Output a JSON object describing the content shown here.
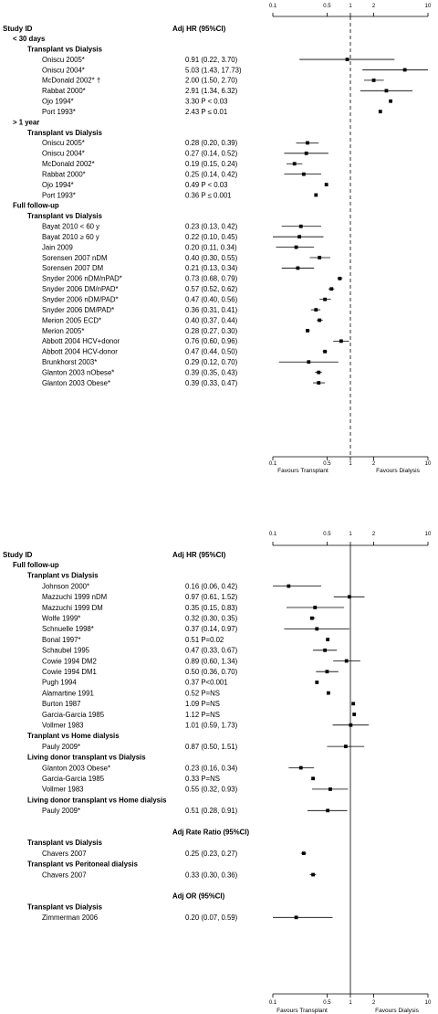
{
  "chart_data": [
    {
      "type": "forest",
      "scale": "log",
      "xlim": [
        0.1,
        10
      ],
      "ticks": [
        "0.1",
        "0.5",
        "1",
        "2",
        "10"
      ],
      "tick_values": [
        0.1,
        0.5,
        1,
        2,
        10
      ],
      "reference_line": 1,
      "reference_style": "dashed",
      "headers": {
        "study": "Study ID",
        "effect": "Adj HR (95%CI)"
      },
      "xlabel_left": "Favours Transplant",
      "xlabel_right": "Favours Dialysis",
      "rows": [
        {
          "kind": "group",
          "text": "< 30 days"
        },
        {
          "kind": "subgroup",
          "text": "Transplant vs Dialysis"
        },
        {
          "kind": "study",
          "text": "Oniscu 2005*",
          "est_label": "0.91 (0.22, 3.70)",
          "est": 0.91,
          "lo": 0.22,
          "hi": 3.7
        },
        {
          "kind": "study",
          "text": "Oniscu 2004*",
          "est_label": "5.03 (1.43, 17.73)",
          "est": 5.03,
          "lo": 1.43,
          "hi": 17.73
        },
        {
          "kind": "study",
          "text": "McDonald 2002* †",
          "est_label": "2.00 (1.50, 2.70)",
          "est": 2.0,
          "lo": 1.5,
          "hi": 2.7
        },
        {
          "kind": "study",
          "text": "Rabbat 2000*",
          "est_label": "2.91 (1.34, 6.32)",
          "est": 2.91,
          "lo": 1.34,
          "hi": 6.32
        },
        {
          "kind": "study",
          "text": "Ojo 1994*",
          "est_label": "3.30 P < 0.03",
          "est": 3.3
        },
        {
          "kind": "study",
          "text": "Port 1993*",
          "est_label": "2.43 P ≤ 0.01",
          "est": 2.43
        },
        {
          "kind": "group",
          "text": "> 1 year"
        },
        {
          "kind": "subgroup",
          "text": "Transplant vs Dialysis"
        },
        {
          "kind": "study",
          "text": "Oniscu 2005*",
          "est_label": "0.28 (0.20, 0.39)",
          "est": 0.28,
          "lo": 0.2,
          "hi": 0.39
        },
        {
          "kind": "study",
          "text": "Oniscu 2004*",
          "est_label": "0.27 (0.14, 0.52)",
          "est": 0.27,
          "lo": 0.14,
          "hi": 0.52
        },
        {
          "kind": "study",
          "text": "McDonald 2002*",
          "est_label": "0.19 (0.15, 0.24)",
          "est": 0.19,
          "lo": 0.15,
          "hi": 0.24
        },
        {
          "kind": "study",
          "text": "Rabbat 2000*",
          "est_label": "0.25 (0.14, 0.42)",
          "est": 0.25,
          "lo": 0.14,
          "hi": 0.42
        },
        {
          "kind": "study",
          "text": "Ojo 1994*",
          "est_label": "0.49 P < 0.03",
          "est": 0.49
        },
        {
          "kind": "study",
          "text": "Port 1993*",
          "est_label": "0.36 P ≤ 0.001",
          "est": 0.36
        },
        {
          "kind": "group",
          "text": "Full follow-up"
        },
        {
          "kind": "subgroup",
          "text": "Transplant vs Dialysis"
        },
        {
          "kind": "study",
          "text": "Bayat 2010 < 60 y",
          "est_label": "0.23 (0.13, 0.42)",
          "est": 0.23,
          "lo": 0.13,
          "hi": 0.42
        },
        {
          "kind": "study",
          "text": "Bayat 2010 ≥ 60 y",
          "est_label": "0.22 (0.10, 0.45)",
          "est": 0.22,
          "lo": 0.1,
          "hi": 0.45
        },
        {
          "kind": "study",
          "text": "Jain 2009",
          "est_label": "0.20 (0.11, 0.34)",
          "est": 0.2,
          "lo": 0.11,
          "hi": 0.34
        },
        {
          "kind": "study",
          "text": "Sorensen 2007 nDM",
          "est_label": "0.40 (0.30, 0.55)",
          "est": 0.4,
          "lo": 0.3,
          "hi": 0.55
        },
        {
          "kind": "study",
          "text": "Sorensen 2007 DM",
          "est_label": "0.21 (0.13, 0.34)",
          "est": 0.21,
          "lo": 0.13,
          "hi": 0.34
        },
        {
          "kind": "study",
          "text": "Snyder 2006 nDM/nPAD*",
          "est_label": "0.73 (0.68, 0.79)",
          "est": 0.73,
          "lo": 0.68,
          "hi": 0.79
        },
        {
          "kind": "study",
          "text": "Snyder 2006 DM/nPAD*",
          "est_label": "0.57 (0.52, 0.62)",
          "est": 0.57,
          "lo": 0.52,
          "hi": 0.62
        },
        {
          "kind": "study",
          "text": "Snyder 2006 nDM/PAD*",
          "est_label": "0.47 (0.40, 0.56)",
          "est": 0.47,
          "lo": 0.4,
          "hi": 0.56
        },
        {
          "kind": "study",
          "text": "Snyder 2006 DM/PAD*",
          "est_label": "0.36 (0.31, 0.41)",
          "est": 0.36,
          "lo": 0.31,
          "hi": 0.41
        },
        {
          "kind": "study",
          "text": "Merion 2005 ECD*",
          "est_label": "0.40 (0.37, 0.44)",
          "est": 0.4,
          "lo": 0.37,
          "hi": 0.44
        },
        {
          "kind": "study",
          "text": "Merion 2005*",
          "est_label": "0.28 (0.27, 0.30)",
          "est": 0.28,
          "lo": 0.27,
          "hi": 0.3
        },
        {
          "kind": "study",
          "text": "Abbott 2004 HCV+donor",
          "est_label": "0.76 (0.60, 0.96)",
          "est": 0.76,
          "lo": 0.6,
          "hi": 0.96
        },
        {
          "kind": "study",
          "text": "Abbott 2004 HCV-donor",
          "est_label": "0.47 (0.44, 0.50)",
          "est": 0.47,
          "lo": 0.44,
          "hi": 0.5
        },
        {
          "kind": "study",
          "text": "Brunkhorst 2003*",
          "est_label": "0.29 (0.12, 0.70)",
          "est": 0.29,
          "lo": 0.12,
          "hi": 0.7
        },
        {
          "kind": "study",
          "text": "Glanton 2003 nObese*",
          "est_label": "0.39 (0.35, 0.43)",
          "est": 0.39,
          "lo": 0.35,
          "hi": 0.43
        },
        {
          "kind": "study",
          "text": "Glanton 2003 Obese*",
          "est_label": "0.39 (0.33, 0.47)",
          "est": 0.39,
          "lo": 0.33,
          "hi": 0.47
        }
      ]
    },
    {
      "type": "forest",
      "scale": "log",
      "xlim": [
        0.1,
        10
      ],
      "ticks": [
        "0.1",
        "0.5",
        "1",
        "2",
        "10"
      ],
      "tick_values": [
        0.1,
        0.5,
        1,
        2,
        10
      ],
      "reference_line": 1,
      "reference_style": "solid",
      "headers": {
        "study": "Study ID",
        "effect": "Adj HR (95%CI)"
      },
      "xlabel_left": "Favours Transplant",
      "xlabel_right": "Favours Dialysis",
      "rows": [
        {
          "kind": "group",
          "text": "Full follow-up"
        },
        {
          "kind": "subgroup",
          "text": "Tranplant vs Dialysis"
        },
        {
          "kind": "study",
          "text": "Johnson 2000*",
          "est_label": "0.16 (0.06, 0.42)",
          "est": 0.16,
          "lo": 0.06,
          "hi": 0.42
        },
        {
          "kind": "study",
          "text": "Mazzuchi 1999 nDM",
          "est_label": "0.97 (0.61, 1.52)",
          "est": 0.97,
          "lo": 0.61,
          "hi": 1.52
        },
        {
          "kind": "study",
          "text": "Mazzuchi 1999 DM",
          "est_label": "0.35 (0.15, 0.83)",
          "est": 0.35,
          "lo": 0.15,
          "hi": 0.83
        },
        {
          "kind": "study",
          "text": "Wolfe 1999*",
          "est_label": "0.32 (0.30, 0.35)",
          "est": 0.32,
          "lo": 0.3,
          "hi": 0.35
        },
        {
          "kind": "study",
          "text": "Schnuelle 1998*",
          "est_label": "0.37 (0.14, 0.97)",
          "est": 0.37,
          "lo": 0.14,
          "hi": 0.97
        },
        {
          "kind": "study",
          "text": "Bonal 1997*",
          "est_label": "0.51 P=0.02",
          "est": 0.51
        },
        {
          "kind": "study",
          "text": "Schaubel 1995",
          "est_label": "0.47 (0.33, 0.67)",
          "est": 0.47,
          "lo": 0.33,
          "hi": 0.67
        },
        {
          "kind": "study",
          "text": "Cowie 1994 DM2",
          "est_label": "0.89 (0.60, 1.34)",
          "est": 0.89,
          "lo": 0.6,
          "hi": 1.34
        },
        {
          "kind": "study",
          "text": "Cowie 1994 DM1",
          "est_label": "0.50 (0.36, 0.70)",
          "est": 0.5,
          "lo": 0.36,
          "hi": 0.7
        },
        {
          "kind": "study",
          "text": "Pugh 1994",
          "est_label": "0.37 P<0.001",
          "est": 0.37
        },
        {
          "kind": "study",
          "text": "Alamartine 1991",
          "est_label": "0.52 P=NS",
          "est": 0.52
        },
        {
          "kind": "study",
          "text": "Burton 1987",
          "est_label": "1.09 P=NS",
          "est": 1.09
        },
        {
          "kind": "study",
          "text": "Garcia-Garcia 1985",
          "est_label": "1.12 P=NS",
          "est": 1.12
        },
        {
          "kind": "study",
          "text": "Vollmer 1983",
          "est_label": "1.01 (0.59, 1.73)",
          "est": 1.01,
          "lo": 0.59,
          "hi": 1.73
        },
        {
          "kind": "subgroup",
          "text": "Tranplant vs Home dialysis"
        },
        {
          "kind": "study",
          "text": "Pauly 2009*",
          "est_label": "0.87 (0.50, 1.51)",
          "est": 0.87,
          "lo": 0.5,
          "hi": 1.51
        },
        {
          "kind": "subgroup",
          "text": "Living donor transplant vs Dialysis"
        },
        {
          "kind": "study",
          "text": "Glanton 2003 Obese*",
          "est_label": "0.23 (0.16, 0.34)",
          "est": 0.23,
          "lo": 0.16,
          "hi": 0.34
        },
        {
          "kind": "study",
          "text": "Garcia-Garcia 1985",
          "est_label": "0.33 P=NS",
          "est": 0.33
        },
        {
          "kind": "study",
          "text": "Vollmer 1983",
          "est_label": "0.55 (0.32, 0.93)",
          "est": 0.55,
          "lo": 0.32,
          "hi": 0.93
        },
        {
          "kind": "subgroup",
          "text": "Living donor transplant vs Home dialysis"
        },
        {
          "kind": "study",
          "text": "Pauly 2009*",
          "est_label": "0.51 (0.28, 0.91)",
          "est": 0.51,
          "lo": 0.28,
          "hi": 0.91
        },
        {
          "kind": "spacer"
        },
        {
          "kind": "measure",
          "text": "Adj Rate Ratio (95%CI)"
        },
        {
          "kind": "subgroup",
          "text": "Transplant vs Dialysis"
        },
        {
          "kind": "study",
          "text": "Chavers 2007",
          "est_label": "0.25 (0.23, 0.27)",
          "est": 0.25,
          "lo": 0.23,
          "hi": 0.27
        },
        {
          "kind": "subgroup",
          "text": "Transplant vs Peritoneal dialysis"
        },
        {
          "kind": "study",
          "text": "Chavers 2007",
          "est_label": "0.33 (0.30, 0.36)",
          "est": 0.33,
          "lo": 0.3,
          "hi": 0.36
        },
        {
          "kind": "spacer"
        },
        {
          "kind": "measure",
          "text": "Adj OR (95%CI)"
        },
        {
          "kind": "subgroup",
          "text": "Transplant vs Dialysis"
        },
        {
          "kind": "study",
          "text": "Zimmerman 2006",
          "est_label": "0.20 (0.07, 0.59)",
          "est": 0.2,
          "lo": 0.07,
          "hi": 0.59
        }
      ]
    }
  ]
}
